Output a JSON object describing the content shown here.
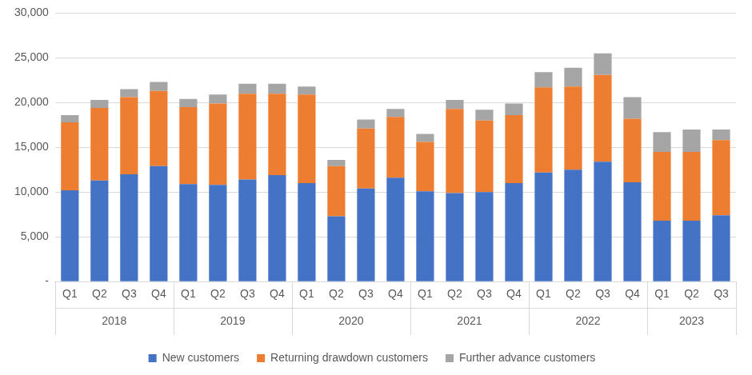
{
  "chart_data": {
    "type": "bar",
    "stacked": true,
    "grid": true,
    "legend": "bottom",
    "categories": [
      "Q1",
      "Q2",
      "Q3",
      "Q4",
      "Q1",
      "Q2",
      "Q3",
      "Q4",
      "Q1",
      "Q2",
      "Q3",
      "Q4",
      "Q1",
      "Q2",
      "Q3",
      "Q4",
      "Q1",
      "Q2",
      "Q3",
      "Q4",
      "Q1",
      "Q2",
      "Q3"
    ],
    "groups": [
      "2018",
      "2019",
      "2020",
      "2021",
      "2022",
      "2023"
    ],
    "ylim": [
      0,
      30000
    ],
    "yticks": [
      {
        "value": 0,
        "label": "-"
      },
      {
        "value": 5000,
        "label": "5,000"
      },
      {
        "value": 10000,
        "label": "10,000"
      },
      {
        "value": 15000,
        "label": "15,000"
      },
      {
        "value": 20000,
        "label": "20,000"
      },
      {
        "value": 25000,
        "label": "25,000"
      },
      {
        "value": 30000,
        "label": "30,000"
      }
    ],
    "series": [
      {
        "name": "New customers",
        "color": "#4472c4",
        "values": [
          10200,
          11300,
          12000,
          12900,
          10900,
          10800,
          11400,
          11900,
          11000,
          7300,
          10400,
          11600,
          10100,
          9900,
          10000,
          11000,
          12200,
          12500,
          13400,
          11100,
          6800,
          6800,
          7400
        ]
      },
      {
        "name": "Returning drawdown customers",
        "color": "#ed7d31",
        "values": [
          7600,
          8100,
          8600,
          8400,
          8600,
          9100,
          9600,
          9100,
          9900,
          5600,
          6700,
          6800,
          5500,
          9400,
          8000,
          7600,
          9500,
          9300,
          9700,
          7100,
          7700,
          7700,
          8400
        ]
      },
      {
        "name": "Further advance customers",
        "color": "#a5a5a5",
        "values": [
          800,
          900,
          900,
          1000,
          900,
          1000,
          1100,
          1100,
          900,
          700,
          1000,
          900,
          900,
          1000,
          1200,
          1300,
          1700,
          2100,
          2400,
          2400,
          2200,
          2500,
          1200
        ]
      }
    ]
  }
}
